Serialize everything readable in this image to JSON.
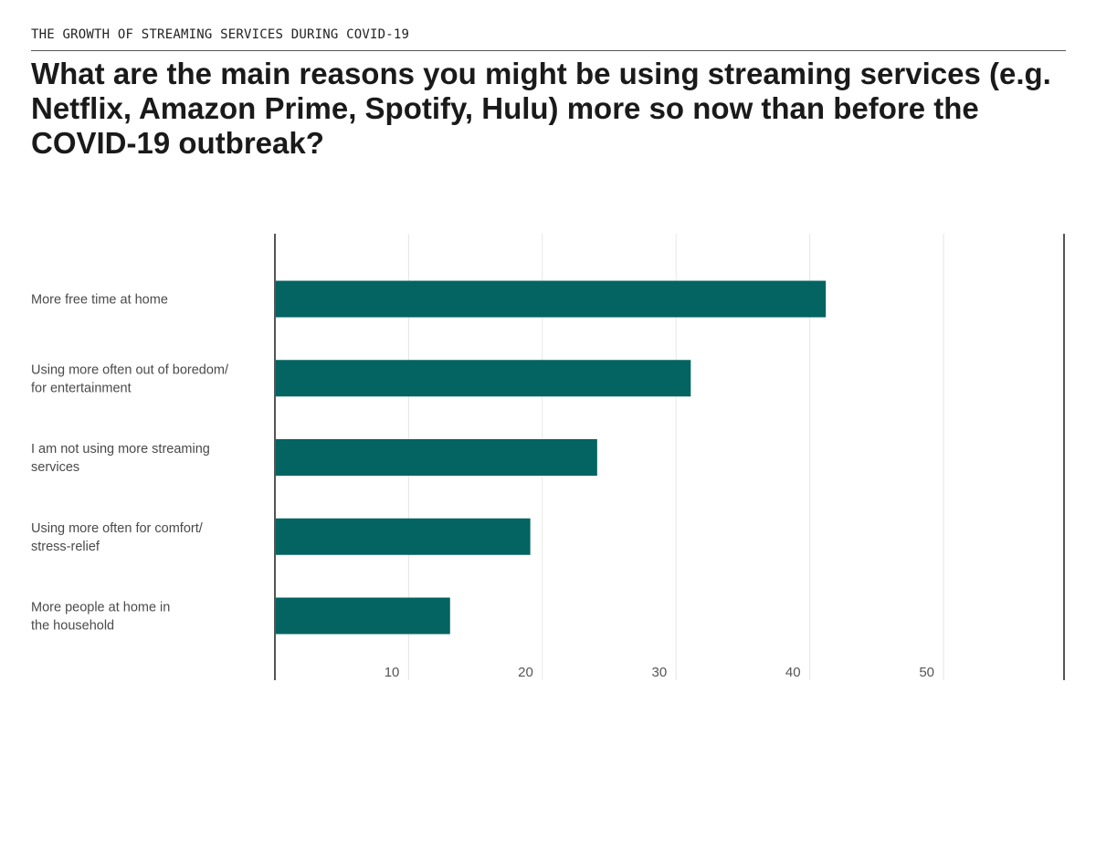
{
  "header": {
    "kicker": "THE GROWTH OF STREAMING SERVICES DURING COVID-19",
    "title": "What are the main reasons you might be using streaming services (e.g. Netflix, Amazon Prime, Spotify, Hulu) more so now than before the COVID-19 outbreak?"
  },
  "chart_data": {
    "type": "bar",
    "orientation": "horizontal",
    "title": "",
    "xlabel": "",
    "ylabel": "",
    "xlim": [
      0,
      59
    ],
    "xticks": [
      10,
      20,
      30,
      40,
      50
    ],
    "grid": true,
    "bar_color": "#036462",
    "categories": [
      [
        "More free time at home"
      ],
      [
        "Using more often out of boredom/",
        "for entertainment"
      ],
      [
        "I am not using more streaming",
        "services"
      ],
      [
        "Using more often for comfort/",
        "stress-relief"
      ],
      [
        "More people at home in",
        "the household"
      ]
    ],
    "values": [
      41.2,
      31.1,
      24.1,
      19.1,
      13.1
    ]
  }
}
